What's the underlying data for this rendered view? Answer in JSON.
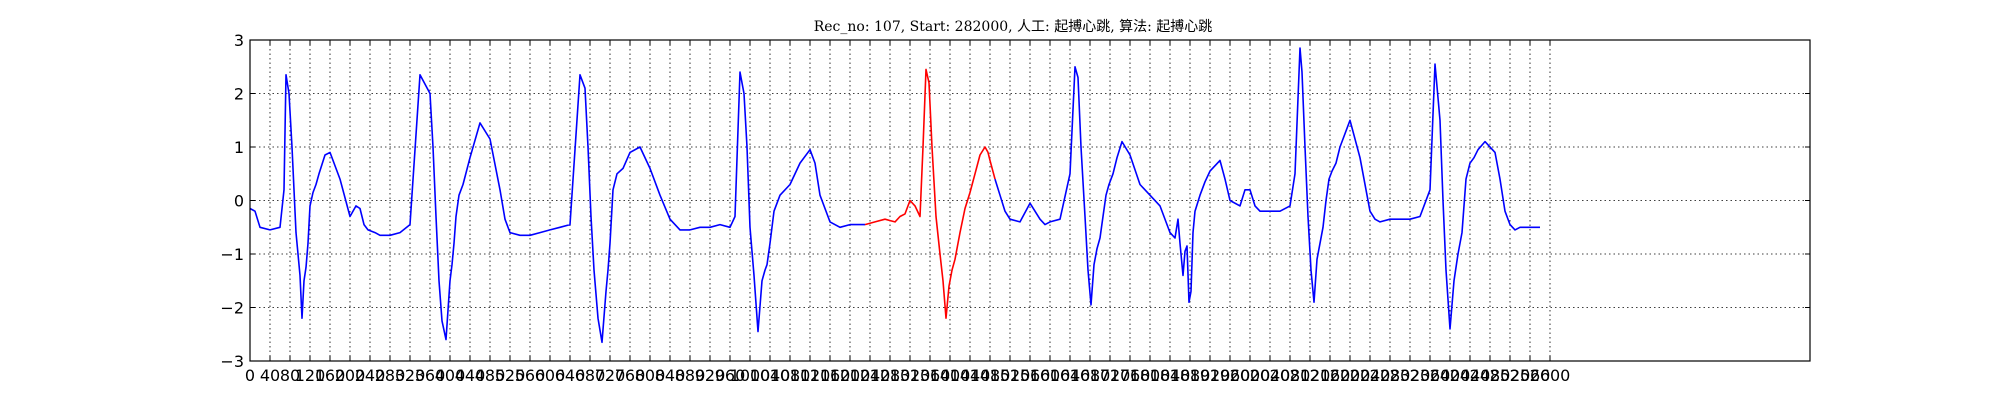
{
  "chart_data": {
    "type": "line",
    "title": "Rec_no: 107, Start: 282000, 人工: 起搏心跳, 算法: 起搏心跳",
    "xlabel": "",
    "ylabel": "",
    "xlim": [
      0,
      3120
    ],
    "ylim": [
      -3,
      3
    ],
    "grid": true,
    "yticks": [
      -3,
      -2,
      -1,
      0,
      1,
      2,
      3
    ],
    "ytick_labels": [
      "−3",
      "−2",
      "−1",
      "0",
      "1",
      "2",
      "3"
    ],
    "xticks": [
      0,
      40,
      80,
      120,
      160,
      200,
      240,
      280,
      320,
      360,
      400,
      440,
      480,
      520,
      560,
      600,
      640,
      680,
      720,
      760,
      800,
      840,
      880,
      920,
      960,
      1000,
      1040,
      1080,
      1120,
      1160,
      1200,
      1240,
      1280,
      1320,
      1360,
      1400,
      1440,
      1480,
      1520,
      1560,
      1600,
      1640,
      1680,
      1720,
      1760,
      1800,
      1840,
      1880,
      1920,
      1960,
      2000,
      2040,
      2080,
      2120,
      2160,
      2200,
      2240,
      2280,
      2320,
      2360,
      2400,
      2440,
      2480,
      2520,
      2560,
      2600
    ],
    "xtick_labels": [
      "0",
      "40",
      "80",
      "120",
      "160",
      "200",
      "240",
      "280",
      "320",
      "360",
      "400",
      "440",
      "480",
      "520",
      "560",
      "600",
      "640",
      "680",
      "720",
      "760",
      "800",
      "840",
      "880",
      "920",
      "960",
      "1000",
      "1040",
      "1080",
      "1120",
      "1160",
      "1200",
      "1240",
      "1280",
      "1320",
      "1360",
      "1400",
      "1440",
      "1480",
      "1520",
      "1560",
      "1600",
      "1640",
      "1680",
      "1720",
      "1760",
      "1800",
      "1840",
      "1880",
      "1920",
      "1960",
      "2000",
      "2040",
      "2080",
      "2120",
      "2160",
      "2200",
      "2240",
      "2280",
      "2320",
      "2360",
      "2400",
      "2440",
      "2480",
      "2520",
      "2560",
      "2600"
    ],
    "series": [
      {
        "color": "#0000ff",
        "x": [
          0,
          10,
          20,
          40,
          60,
          68,
          72,
          78,
          84,
          92,
          100,
          104,
          108,
          112,
          116,
          120,
          126,
          132,
          138,
          150,
          160,
          180,
          200,
          212,
          220,
          228,
          236,
          250,
          260,
          280,
          300,
          320,
          340,
          360,
          366,
          372,
          378,
          384,
          392,
          400,
          404,
          408,
          412,
          418,
          426,
          440,
          460,
          480,
          500,
          510,
          520,
          540,
          560,
          580,
          600,
          620,
          640,
          660,
          670,
          676,
          682,
          688,
          696,
          704,
          712,
          716,
          720,
          726,
          734,
          746,
          760,
          780,
          800,
          820,
          840,
          860,
          880,
          900,
          920,
          940,
          960,
          970,
          980,
          988,
          994,
          1000,
          1008,
          1016,
          1024,
          1030,
          1034,
          1040,
          1048,
          1060,
          1080,
          1100,
          1120,
          1130,
          1140,
          1160,
          1180,
          1200,
          1230
        ],
        "y": [
          -0.15,
          -0.2,
          -0.5,
          -0.55,
          -0.5,
          0.2,
          2.35,
          2.0,
          1.0,
          -0.6,
          -1.4,
          -2.2,
          -1.5,
          -1.25,
          -0.8,
          -0.1,
          0.15,
          0.3,
          0.5,
          0.85,
          0.9,
          0.4,
          -0.3,
          -0.1,
          -0.15,
          -0.45,
          -0.55,
          -0.6,
          -0.65,
          -0.65,
          -0.6,
          -0.45,
          2.35,
          2.0,
          1.0,
          -0.3,
          -1.5,
          -2.25,
          -2.6,
          -1.5,
          -1.2,
          -0.8,
          -0.3,
          0.1,
          0.3,
          0.8,
          1.45,
          1.15,
          0.2,
          -0.35,
          -0.6,
          -0.65,
          -0.65,
          -0.6,
          -0.55,
          -0.5,
          -0.45,
          2.35,
          2.1,
          1.0,
          -0.3,
          -1.3,
          -2.2,
          -2.65,
          -1.7,
          -1.3,
          -0.8,
          0.2,
          0.5,
          0.6,
          0.9,
          1.0,
          0.6,
          0.1,
          -0.35,
          -0.55,
          -0.55,
          -0.5,
          -0.5,
          -0.45,
          -0.5,
          -0.3,
          2.4,
          2.0,
          1.0,
          -0.5,
          -1.4,
          -2.45,
          -1.5,
          -1.3,
          -1.2,
          -0.8,
          -0.2,
          0.1,
          0.3,
          0.7,
          0.95,
          0.7,
          0.1,
          -0.4,
          -0.5,
          -0.45,
          -0.45
        ]
      },
      {
        "color": "#ff0000",
        "x": [
          1230,
          1250,
          1270,
          1290,
          1300,
          1310,
          1320,
          1330,
          1340,
          1346,
          1352,
          1358,
          1364,
          1372,
          1380,
          1386,
          1392,
          1398,
          1404,
          1410,
          1420,
          1430,
          1440,
          1450,
          1460,
          1470,
          1476,
          1480,
          1490
        ],
        "y": [
          -0.45,
          -0.4,
          -0.35,
          -0.4,
          -0.3,
          -0.25,
          0.0,
          -0.1,
          -0.3,
          1.0,
          2.45,
          2.2,
          1.0,
          -0.3,
          -1.0,
          -1.5,
          -2.2,
          -1.6,
          -1.3,
          -1.1,
          -0.6,
          -0.15,
          0.15,
          0.5,
          0.85,
          1.0,
          0.9,
          0.75,
          0.4
        ]
      },
      {
        "color": "#0000ff",
        "x": [
          1490,
          1500,
          1510,
          1520,
          1540,
          1560,
          1580,
          1590,
          1600,
          1620,
          1640,
          1650,
          1656,
          1662,
          1670,
          1676,
          1682,
          1688,
          1694,
          1700,
          1706,
          1712,
          1718,
          1726,
          1734,
          1744,
          1760,
          1780,
          1800,
          1820,
          1840,
          1850,
          1856,
          1860,
          1866,
          1870,
          1874,
          1878,
          1882,
          1886,
          1890,
          1900,
          1910,
          1920,
          1940,
          1950,
          1960,
          1980,
          1990,
          2000,
          2010,
          2020,
          2040,
          2060,
          2080,
          2090,
          2100,
          2104,
          2110,
          2116,
          2122,
          2128,
          2134,
          2140,
          2146,
          2152,
          2158,
          2164,
          2172,
          2180,
          2200,
          2220,
          2240,
          2250,
          2260,
          2280,
          2300,
          2320,
          2340,
          2360,
          2370,
          2380,
          2386,
          2392,
          2400,
          2408,
          2416,
          2424,
          2432,
          2440,
          2448,
          2456,
          2470,
          2490,
          2500,
          2510,
          2520,
          2530,
          2540,
          2550,
          2560,
          2570,
          2580
        ],
        "y": [
          0.4,
          0.1,
          -0.2,
          -0.35,
          -0.4,
          -0.05,
          -0.35,
          -0.45,
          -0.4,
          -0.35,
          0.5,
          2.5,
          2.3,
          1.0,
          -0.3,
          -1.3,
          -1.95,
          -1.2,
          -0.9,
          -0.7,
          -0.3,
          0.1,
          0.3,
          0.5,
          0.8,
          1.1,
          0.85,
          0.3,
          0.1,
          -0.1,
          -0.6,
          -0.7,
          -0.35,
          -0.8,
          -1.4,
          -0.95,
          -0.85,
          -1.9,
          -1.7,
          -0.6,
          -0.2,
          0.1,
          0.35,
          0.55,
          0.75,
          0.4,
          0.0,
          -0.1,
          0.2,
          0.2,
          -0.1,
          -0.2,
          -0.2,
          -0.2,
          -0.1,
          0.5,
          2.85,
          2.4,
          1.0,
          -0.3,
          -1.3,
          -1.9,
          -1.1,
          -0.8,
          -0.5,
          0.0,
          0.4,
          0.55,
          0.7,
          1.0,
          1.5,
          0.8,
          -0.2,
          -0.35,
          -0.4,
          -0.35,
          -0.35,
          -0.35,
          -0.3,
          0.2,
          2.55,
          1.5,
          0.0,
          -1.3,
          -2.4,
          -1.5,
          -1.0,
          -0.6,
          0.4,
          0.7,
          0.8,
          0.95,
          1.1,
          0.9,
          0.4,
          -0.2,
          -0.45,
          -0.55,
          -0.5,
          -0.5,
          -0.5,
          -0.5,
          -0.5
        ]
      }
    ]
  }
}
